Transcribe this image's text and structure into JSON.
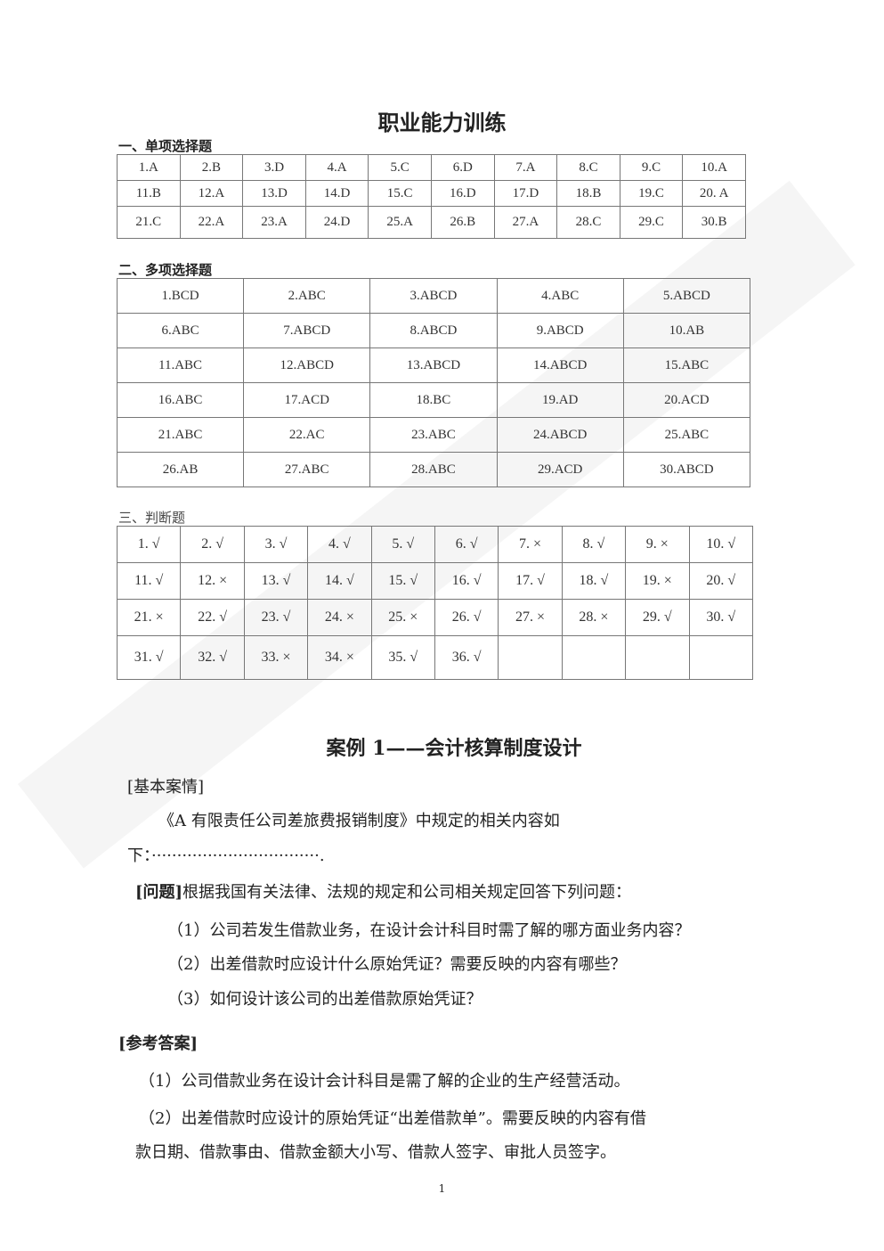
{
  "title": "职业能力训练",
  "section1": {
    "heading": "一、单项选择题",
    "rows": [
      [
        "1.A",
        "2.B",
        "3.D",
        "4.A",
        "5.C",
        "6.D",
        "7.A",
        "8.C",
        "9.C",
        "10.A"
      ],
      [
        "11.B",
        "12.A",
        "13.D",
        "14.D",
        "15.C",
        "16.D",
        "17.D",
        "18.B",
        "19.C",
        "20. A"
      ],
      [
        "21.C",
        "22.A",
        "23.A",
        "24.D",
        "25.A",
        "26.B",
        "27.A",
        "28.C",
        "29.C",
        "30.B"
      ]
    ]
  },
  "section2": {
    "heading": "二、多项选择题",
    "rows": [
      [
        "1.BCD",
        "2.ABC",
        "3.ABCD",
        "4.ABC",
        "5.ABCD"
      ],
      [
        "6.ABC",
        "7.ABCD",
        "8.ABCD",
        "9.ABCD",
        "10.AB"
      ],
      [
        "11.ABC",
        "12.ABCD",
        "13.ABCD",
        "14.ABCD",
        "15.ABC"
      ],
      [
        "16.ABC",
        "17.ACD",
        "18.BC",
        "19.AD",
        "20.ACD"
      ],
      [
        "21.ABC",
        "22.AC",
        "23.ABC",
        "24.ABCD",
        "25.ABC"
      ],
      [
        "26.AB",
        "27.ABC",
        "28.ABC",
        "29.ACD",
        "30.ABCD"
      ]
    ]
  },
  "section3": {
    "heading": "三、判断题",
    "rows": [
      [
        "1. √",
        "2. √",
        "3. √",
        "4. √",
        "5. √",
        "6. √",
        "7. ×",
        "8. √",
        "9. ×",
        "10. √"
      ],
      [
        "11. √",
        "12. ×",
        "13. √",
        "14. √",
        "15. √",
        "16. √",
        "17. √",
        "18. √",
        "19. ×",
        "20. √"
      ],
      [
        "21. ×",
        "22. √",
        "23. √",
        "24. ×",
        "25. ×",
        "26. √",
        "27. ×",
        "28. ×",
        "29. √",
        "30. √"
      ],
      [
        "31. √",
        "32. √",
        "33. ×",
        "34. ×",
        "35. √",
        "36. √",
        "",
        "",
        "",
        ""
      ]
    ]
  },
  "case": {
    "title": "案例 1——会计核算制度设计",
    "basic_label": "[基本案情]",
    "basic_text_1": "《A 有限责任公司差旅费报销制度》中规定的相关内容如",
    "basic_text_2": "下：·································.",
    "question_label": "[问题]",
    "question_intro": "根据我国有关法律、法规的规定和公司相关规定回答下列问题：",
    "questions": [
      "（1）公司若发生借款业务，在设计会计科目时需了解的哪方面业务内容？",
      "（2）出差借款时应设计什么原始凭证？需要反映的内容有哪些？",
      "（3）如何设计该公司的出差借款原始凭证？"
    ],
    "answer_label": "[参考答案]",
    "answers": [
      "（1）公司借款业务在设计会计科目是需了解的企业的生产经营活动。",
      "（2）出差借款时应设计的原始凭证“出差借款单”。需要反映的内容有借",
      "款日期、借款事由、借款金额大小写、借款人签字、审批人员签字。"
    ]
  },
  "page_number": "1"
}
